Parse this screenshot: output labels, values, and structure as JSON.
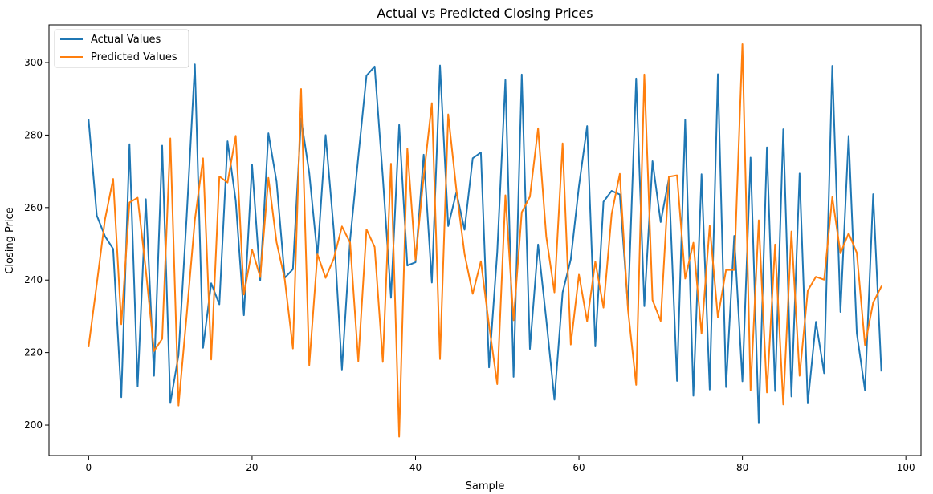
{
  "chart_data": {
    "type": "line",
    "title": "Actual vs Predicted Closing Prices",
    "xlabel": "Sample",
    "ylabel": "Closing Price",
    "xlim": [
      -4.85,
      101.85
    ],
    "ylim": [
      191.6,
      310.4
    ],
    "xticks": [
      0,
      20,
      40,
      60,
      80,
      100
    ],
    "yticks": [
      200,
      220,
      240,
      260,
      280,
      300
    ],
    "grid": false,
    "legend_position": "top-left",
    "series": [
      {
        "name": "Actual Values",
        "color": "#1f77b4",
        "values": [
          284.1,
          257.8,
          252.1,
          248.6,
          207.7,
          277.5,
          210.7,
          262.3,
          213.6,
          277.1,
          206.1,
          219.3,
          257.6,
          299.5,
          221.3,
          239.1,
          233.3,
          278.3,
          261.9,
          230.3,
          271.8,
          239.9,
          280.5,
          267.1,
          240.6,
          243.0,
          284.6,
          269.5,
          246.7,
          280.0,
          253.7,
          215.3,
          251.1,
          274.0,
          296.4,
          298.9,
          268.4,
          235.1,
          282.8,
          244.0,
          244.9,
          274.6,
          239.3,
          299.2,
          254.9,
          264.2,
          253.9,
          273.6,
          275.2,
          215.9,
          247.7,
          295.2,
          213.3,
          296.7,
          221.0,
          249.8,
          229.1,
          207.0,
          236.6,
          245.7,
          265.9,
          282.5,
          221.7,
          261.6,
          264.6,
          263.6,
          232.5,
          295.6,
          232.8,
          272.8,
          256.0,
          267.9,
          212.2,
          284.2,
          208.1,
          269.2,
          209.8,
          296.8,
          210.5,
          252.2,
          212.1,
          273.8,
          200.5,
          276.6,
          209.4,
          281.6,
          207.9,
          269.4,
          206.0,
          228.5,
          214.3,
          299.1,
          231.2,
          279.8,
          225.3,
          209.6,
          263.7,
          215.0
        ]
      },
      {
        "name": "Predicted Values",
        "color": "#ff7f0e",
        "values": [
          221.7,
          239.0,
          256.7,
          267.9,
          227.8,
          261.4,
          262.7,
          242.7,
          220.4,
          223.8,
          279.1,
          205.4,
          230.4,
          256.6,
          273.6,
          218.1,
          268.6,
          266.9,
          279.8,
          236.0,
          248.4,
          240.8,
          268.2,
          250.4,
          240.2,
          221.1,
          292.7,
          216.5,
          247.1,
          240.6,
          245.9,
          254.8,
          250.3,
          217.6,
          254.0,
          249.1,
          217.4,
          272.1,
          196.8,
          276.3,
          245.6,
          268.5,
          288.8,
          218.2,
          285.7,
          264.9,
          247.2,
          236.2,
          245.2,
          227.5,
          211.3,
          263.4,
          228.9,
          258.7,
          263.0,
          281.9,
          252.0,
          236.6,
          277.7,
          222.2,
          241.5,
          228.6,
          245.1,
          232.4,
          258.2,
          269.3,
          231.8,
          211.1,
          296.7,
          234.5,
          228.7,
          268.5,
          268.9,
          240.4,
          250.3,
          225.2,
          255.0,
          229.7,
          242.8,
          242.8,
          305.1,
          209.6,
          256.5,
          209.0,
          249.8,
          205.7,
          253.4,
          213.6,
          237.1,
          240.9,
          240.1,
          262.9,
          247.4,
          252.9,
          247.5,
          222.1,
          233.8,
          238.2
        ]
      }
    ]
  }
}
